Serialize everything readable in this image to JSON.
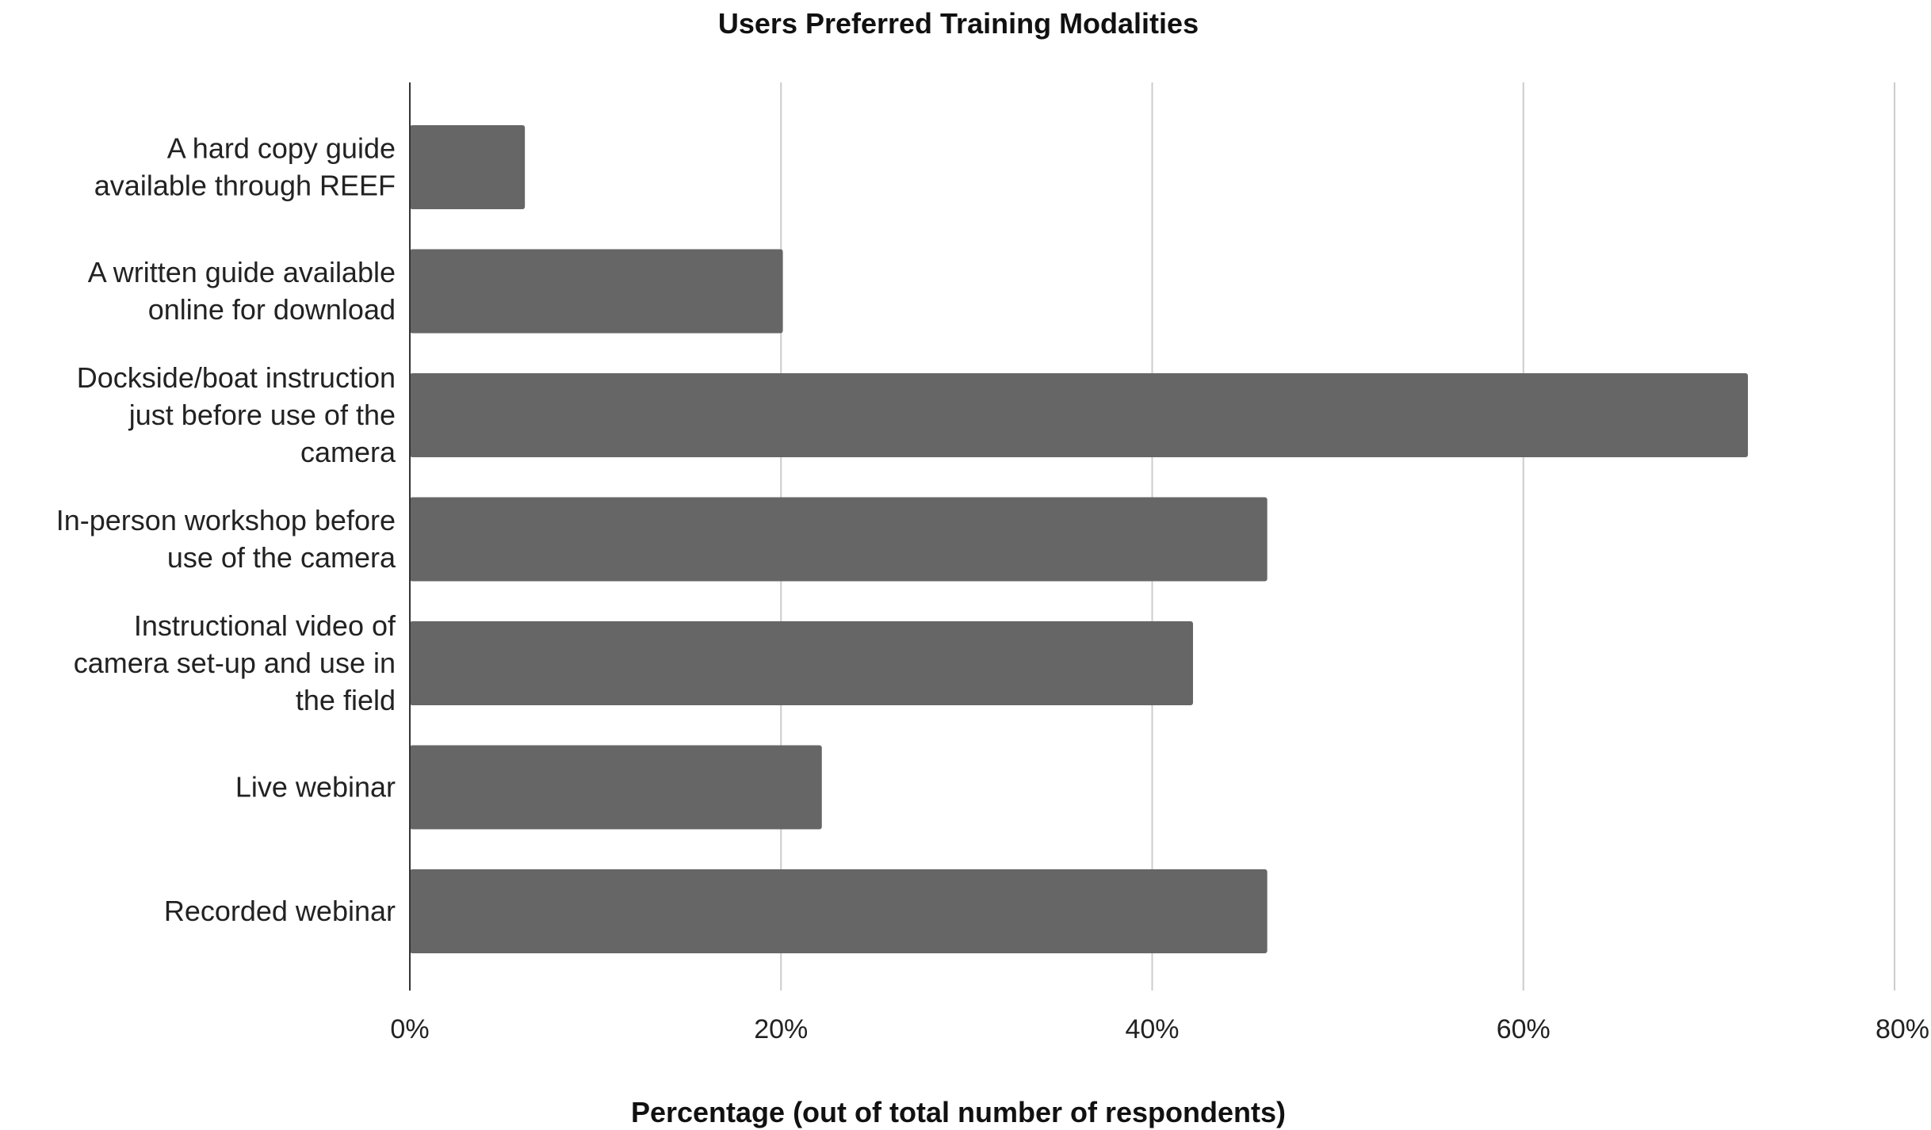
{
  "chart_data": {
    "type": "bar",
    "orientation": "horizontal",
    "title": "Users Preferred Training Modalities",
    "xlabel": "Percentage (out of total number of respondents)",
    "ylabel": "",
    "xlim": [
      0,
      80
    ],
    "x_ticks": [
      0,
      20,
      40,
      60,
      80
    ],
    "x_tick_labels": [
      "0%",
      "20%",
      "40%",
      "60%",
      "80%"
    ],
    "grid": "vertical",
    "legend": "none",
    "bar_color": "#666666",
    "categories": [
      [
        "A hard copy guide",
        "available through REEF"
      ],
      [
        "A written guide available",
        "online for download"
      ],
      [
        "Dockside/boat instruction",
        "just before use of the",
        "camera"
      ],
      [
        "In-person workshop before",
        "use of the camera"
      ],
      [
        "Instructional video of",
        "camera set-up and use in",
        "the field"
      ],
      [
        "Live webinar"
      ],
      [
        "Recorded webinar"
      ]
    ],
    "values": [
      6.2,
      20.1,
      72.1,
      46.2,
      42.2,
      22.2,
      46.2
    ]
  }
}
